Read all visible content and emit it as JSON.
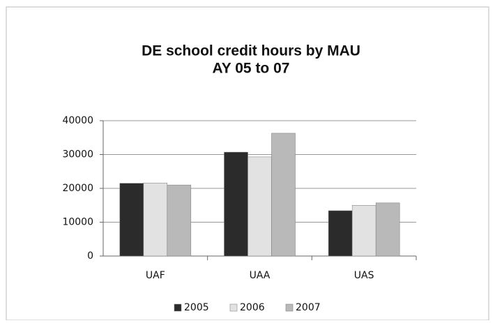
{
  "chart_data": {
    "type": "bar",
    "title": [
      "DE school credit hours by MAU",
      "AY 05 to 07"
    ],
    "categories": [
      "UAF",
      "UAA",
      "UAS"
    ],
    "series": [
      {
        "name": "2005",
        "color": "#2b2b2b",
        "values": [
          21500,
          30700,
          13400
        ]
      },
      {
        "name": "2006",
        "color": "#e2e2e2",
        "values": [
          21600,
          29300,
          15000
        ]
      },
      {
        "name": "2007",
        "color": "#b9b9b9",
        "values": [
          21000,
          36300,
          15700
        ]
      }
    ],
    "ylim": [
      0,
      40000
    ],
    "yticks": [
      0,
      10000,
      20000,
      30000,
      40000
    ],
    "grid": true,
    "legend": "bottom"
  }
}
